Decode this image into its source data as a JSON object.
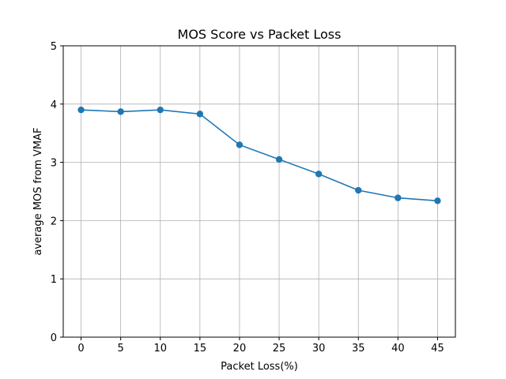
{
  "chart_data": {
    "type": "line",
    "title": "MOS Score vs Packet Loss",
    "xlabel": "Packet Loss(%)",
    "ylabel": "average MOS from VMAF",
    "x": [
      0,
      5,
      10,
      15,
      20,
      25,
      30,
      35,
      40,
      45
    ],
    "xlim": [
      -2.25,
      47.25
    ],
    "ylim": [
      0,
      5
    ],
    "xticks": [
      0,
      5,
      10,
      15,
      20,
      25,
      30,
      35,
      40,
      45
    ],
    "yticks": [
      0,
      1,
      2,
      3,
      4,
      5
    ],
    "grid": true,
    "series": [
      {
        "values": [
          3.9,
          3.87,
          3.9,
          3.83,
          3.3,
          3.05,
          2.8,
          2.52,
          2.39,
          2.34
        ],
        "color": "#1f77b4",
        "marker": "circle"
      }
    ]
  },
  "colors": {
    "grid": "#b0b0b0",
    "axes": "#000000",
    "line": "#1f77b4"
  }
}
